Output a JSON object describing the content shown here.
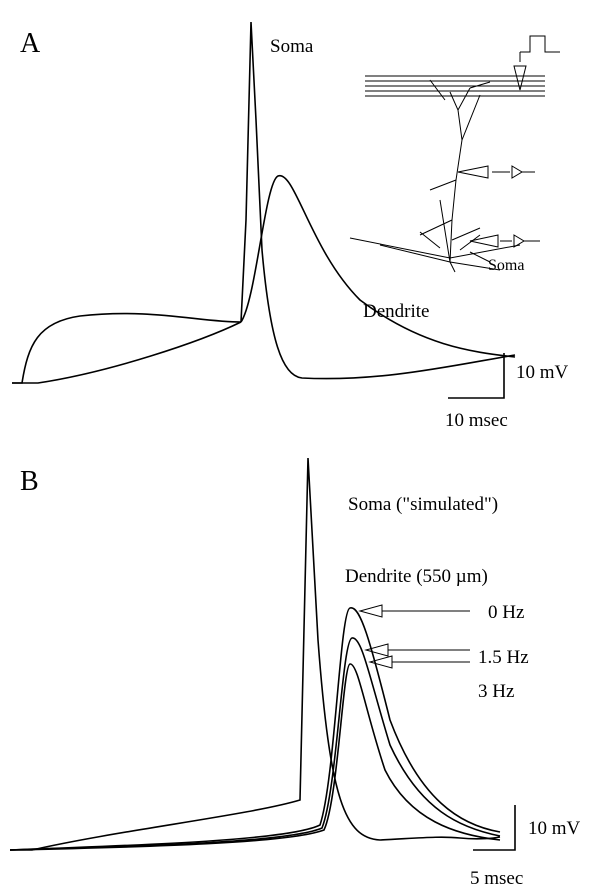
{
  "panel_a": {
    "label": "A",
    "soma_label": "Soma",
    "dendrite_label": "Dendrite",
    "inset_soma_label": "Soma",
    "scale_v": "10 mV",
    "scale_t": "10 msec"
  },
  "panel_b": {
    "label": "B",
    "soma_label": "Soma (\"simulated\")",
    "dendrite_label": "Dendrite (550 µm)",
    "freq_labels": [
      "0 Hz",
      "1.5 Hz",
      "3 Hz"
    ],
    "scale_v": "10 mV",
    "scale_t": "5 msec"
  }
}
